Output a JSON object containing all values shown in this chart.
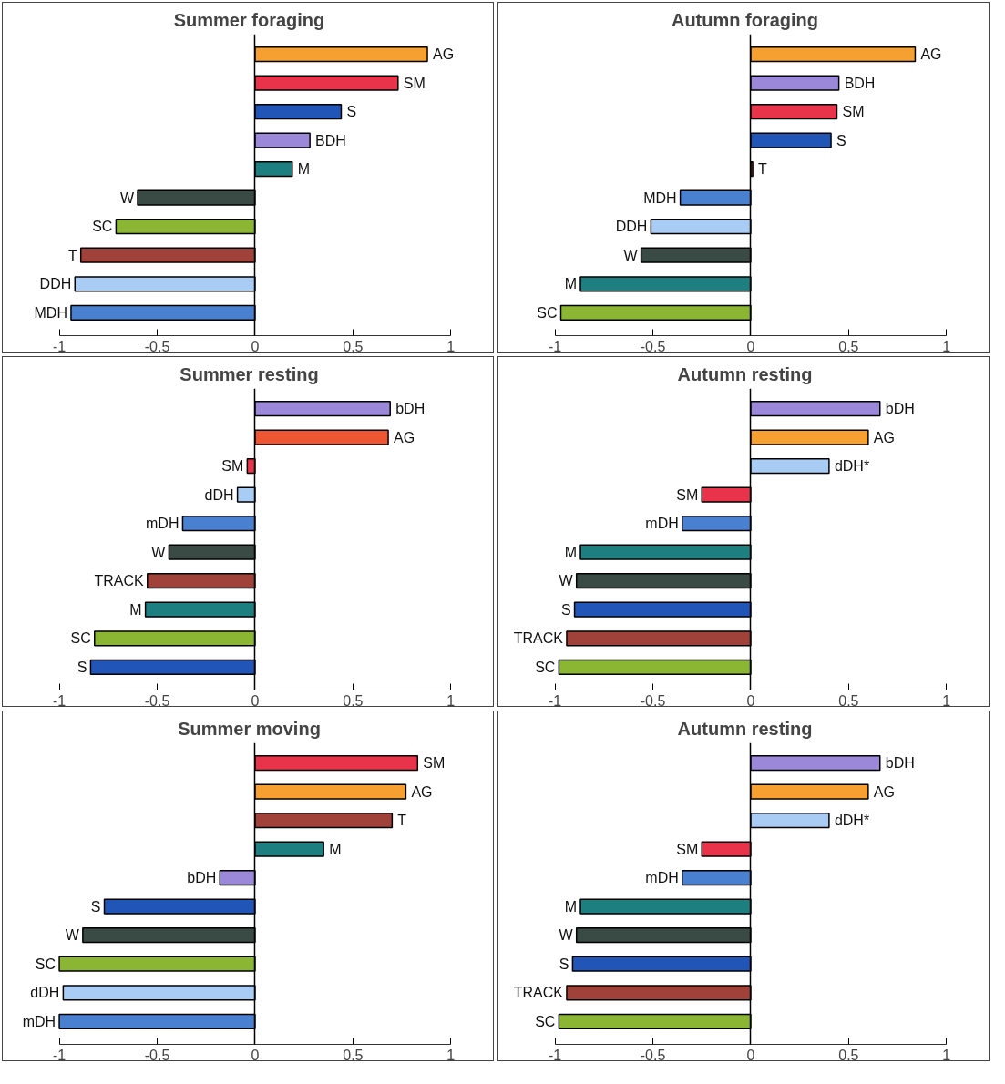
{
  "chart_data": [
    {
      "type": "bar",
      "orientation": "horizontal",
      "title": "Summer foraging",
      "categories": [
        "AG",
        "SM",
        "S",
        "BDH",
        "M",
        "W",
        "SC",
        "T",
        "DDH",
        "MDH"
      ],
      "values": [
        0.88,
        0.73,
        0.44,
        0.28,
        0.19,
        -0.6,
        -0.71,
        -0.89,
        -0.92,
        -0.94
      ],
      "colors": [
        "#f5a030",
        "#e8334a",
        "#2255b8",
        "#9b88d8",
        "#1e7f80",
        "#3a4a44",
        "#8ab634",
        "#a0413a",
        "#a8ccf4",
        "#4a80d0"
      ],
      "xlim": [
        -1,
        1
      ],
      "xticks": [
        -1,
        -0.5,
        0,
        0.5,
        1
      ]
    },
    {
      "type": "bar",
      "orientation": "horizontal",
      "title": "Autumn foraging",
      "categories": [
        "AG",
        "BDH",
        "SM",
        "S",
        "T",
        "MDH",
        "DDH",
        "W",
        "M",
        "SC"
      ],
      "values": [
        0.84,
        0.45,
        0.44,
        0.41,
        0.01,
        -0.36,
        -0.51,
        -0.56,
        -0.87,
        -0.97
      ],
      "colors": [
        "#f5a030",
        "#9b88d8",
        "#e8334a",
        "#2255b8",
        "#a0413a",
        "#4a80d0",
        "#a8ccf4",
        "#3a4a44",
        "#1e7f80",
        "#8ab634"
      ],
      "xlim": [
        -1,
        1
      ],
      "xticks": [
        -1,
        -0.5,
        0,
        0.5,
        1
      ]
    },
    {
      "type": "bar",
      "orientation": "horizontal",
      "title": "Summer resting",
      "categories": [
        "bDH",
        "AG",
        "SM",
        "dDH",
        "mDH",
        "W",
        "TRACK",
        "M",
        "SC",
        "S"
      ],
      "values": [
        0.69,
        0.68,
        -0.04,
        -0.09,
        -0.37,
        -0.44,
        -0.55,
        -0.56,
        -0.82,
        -0.84
      ],
      "colors": [
        "#9b88d8",
        "#ee5533",
        "#e8334a",
        "#a8ccf4",
        "#4a80d0",
        "#3a4a44",
        "#a0413a",
        "#1e7f80",
        "#8ab634",
        "#2255b8"
      ],
      "xlim": [
        -1,
        1
      ],
      "xticks": [
        -1,
        -0.5,
        0,
        0.5,
        1
      ]
    },
    {
      "type": "bar",
      "orientation": "horizontal",
      "title": "Autumn resting",
      "categories": [
        "bDH",
        "AG",
        "dDH*",
        "SM",
        "mDH",
        "M",
        "W",
        "S",
        "TRACK",
        "SC"
      ],
      "values": [
        0.66,
        0.6,
        0.4,
        -0.25,
        -0.35,
        -0.87,
        -0.89,
        -0.9,
        -0.94,
        -0.98
      ],
      "colors": [
        "#9b88d8",
        "#f5a030",
        "#a8ccf4",
        "#e8334a",
        "#4a80d0",
        "#1e7f80",
        "#3a4a44",
        "#2255b8",
        "#a0413a",
        "#8ab634"
      ],
      "xlim": [
        -1,
        1
      ],
      "xticks": [
        -1,
        -0.5,
        0,
        0.5,
        1
      ]
    },
    {
      "type": "bar",
      "orientation": "horizontal",
      "title": "Summer moving",
      "categories": [
        "SM",
        "AG",
        "T",
        "M",
        "bDH",
        "S",
        "W",
        "SC",
        "dDH",
        "mDH"
      ],
      "values": [
        0.83,
        0.77,
        0.7,
        0.35,
        -0.18,
        -0.77,
        -0.88,
        -1.0,
        -0.98,
        -1.0
      ],
      "colors": [
        "#e8334a",
        "#f5a030",
        "#a0413a",
        "#1e7f80",
        "#9b88d8",
        "#2255b8",
        "#3a4a44",
        "#8ab634",
        "#a8ccf4",
        "#4a80d0"
      ],
      "xlim": [
        -1,
        1
      ],
      "xticks": [
        -1,
        -0.5,
        0,
        0.5,
        1
      ]
    },
    {
      "type": "bar",
      "orientation": "horizontal",
      "title": "Autumn resting",
      "categories": [
        "bDH",
        "AG",
        "dDH*",
        "SM",
        "mDH",
        "M",
        "W",
        "S",
        "TRACK",
        "SC"
      ],
      "values": [
        0.66,
        0.6,
        0.4,
        -0.25,
        -0.35,
        -0.87,
        -0.89,
        -0.91,
        -0.94,
        -0.98
      ],
      "colors": [
        "#9b88d8",
        "#f5a030",
        "#a8ccf4",
        "#e8334a",
        "#4a80d0",
        "#1e7f80",
        "#3a4a44",
        "#2255b8",
        "#a0413a",
        "#8ab634"
      ],
      "xlim": [
        -1,
        1
      ],
      "xticks": [
        -1,
        -0.5,
        0,
        0.5,
        1
      ]
    }
  ]
}
